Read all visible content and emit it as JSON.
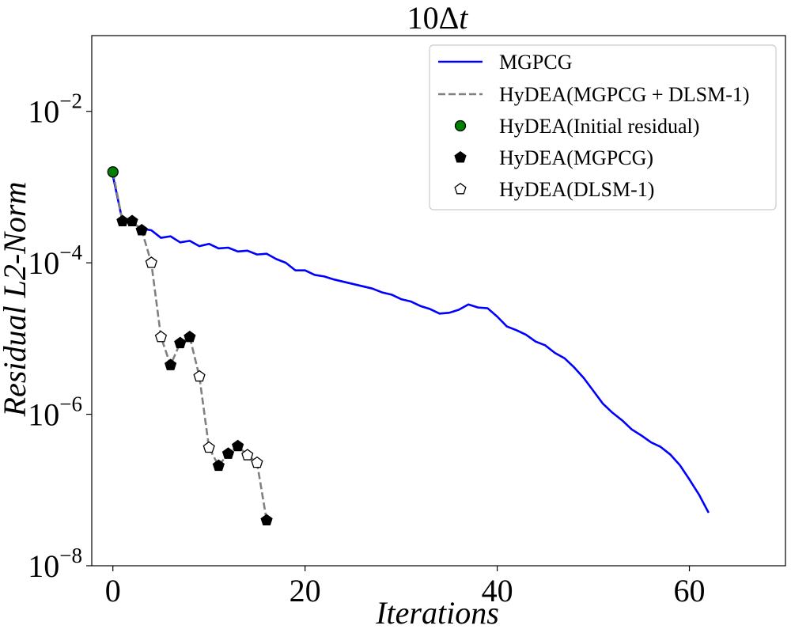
{
  "chart_data": {
    "type": "line",
    "title": "10Δ",
    "title_var": "t",
    "xlabel": "Iterations",
    "ylabel": "Residual L2-Norm",
    "xlim": [
      -2.2,
      70
    ],
    "ylim_log10": [
      -8,
      -1
    ],
    "y_scale": "log",
    "x_ticks": [
      0,
      20,
      40,
      60
    ],
    "x_tick_labels": [
      "0",
      "20",
      "40",
      "60"
    ],
    "y_ticks_log10": [
      -8,
      -6,
      -4,
      -2
    ],
    "y_tick_bases": [
      "10",
      "10",
      "10",
      "10"
    ],
    "y_tick_exponents": [
      "−8",
      "−6",
      "−4",
      "−2"
    ],
    "legend_position": "top-right",
    "series": [
      {
        "name": "MGPCG",
        "style": "solid",
        "color": "#0000ff",
        "x": [
          0,
          1,
          2,
          3,
          4,
          5,
          6,
          7,
          8,
          9,
          10,
          11,
          12,
          13,
          14,
          15,
          16,
          17,
          18,
          19,
          20,
          21,
          22,
          23,
          24,
          25,
          26,
          27,
          28,
          29,
          30,
          31,
          32,
          33,
          34,
          35,
          36,
          37,
          38,
          39,
          40,
          41,
          42,
          43,
          44,
          45,
          46,
          47,
          48,
          49,
          50,
          51,
          52,
          53,
          54,
          55,
          56,
          57,
          58,
          59,
          60,
          61,
          62
        ],
        "log10_y": [
          -2.85,
          -3.45,
          -3.47,
          -3.55,
          -3.57,
          -3.67,
          -3.65,
          -3.73,
          -3.71,
          -3.78,
          -3.75,
          -3.81,
          -3.8,
          -3.85,
          -3.84,
          -3.89,
          -3.88,
          -3.95,
          -4.0,
          -4.1,
          -4.1,
          -4.16,
          -4.18,
          -4.22,
          -4.25,
          -4.28,
          -4.31,
          -4.34,
          -4.39,
          -4.42,
          -4.48,
          -4.51,
          -4.57,
          -4.61,
          -4.67,
          -4.66,
          -4.62,
          -4.55,
          -4.59,
          -4.6,
          -4.71,
          -4.84,
          -4.89,
          -4.95,
          -5.04,
          -5.09,
          -5.19,
          -5.26,
          -5.38,
          -5.52,
          -5.69,
          -5.86,
          -5.98,
          -6.08,
          -6.2,
          -6.28,
          -6.37,
          -6.43,
          -6.53,
          -6.67,
          -6.86,
          -7.06,
          -7.3
        ]
      },
      {
        "name": "HyDEA(MGPCG + DLSM-1)",
        "style": "dashed",
        "color": "#808080",
        "x": [
          0,
          1,
          2,
          3,
          4,
          5,
          6,
          7,
          8,
          9,
          10,
          11,
          12,
          13,
          14,
          15,
          16
        ],
        "log10_y": [
          -2.8,
          -3.45,
          -3.45,
          -3.57,
          -4.0,
          -4.98,
          -5.35,
          -5.06,
          -4.98,
          -5.5,
          -6.44,
          -6.68,
          -6.52,
          -6.42,
          -6.54,
          -6.64,
          -7.4
        ]
      },
      {
        "name": "HyDEA(Initial residual)",
        "marker": "circle",
        "fill": "#008000",
        "x": [
          0
        ],
        "log10_y": [
          -2.8
        ]
      },
      {
        "name": "HyDEA(MGPCG)",
        "marker": "pentagon",
        "fill": "#000000",
        "x": [
          1,
          2,
          3,
          6,
          7,
          8,
          11,
          12,
          13,
          16
        ],
        "log10_y": [
          -3.45,
          -3.45,
          -3.57,
          -5.35,
          -5.06,
          -4.98,
          -6.68,
          -6.52,
          -6.42,
          -7.4
        ]
      },
      {
        "name": "HyDEA(DLSM-1)",
        "marker": "pentagon",
        "fill": "#ffffff",
        "x": [
          4,
          5,
          9,
          10,
          14,
          15
        ],
        "log10_y": [
          -4.0,
          -4.98,
          -5.5,
          -6.44,
          -6.54,
          -6.64
        ]
      }
    ]
  }
}
